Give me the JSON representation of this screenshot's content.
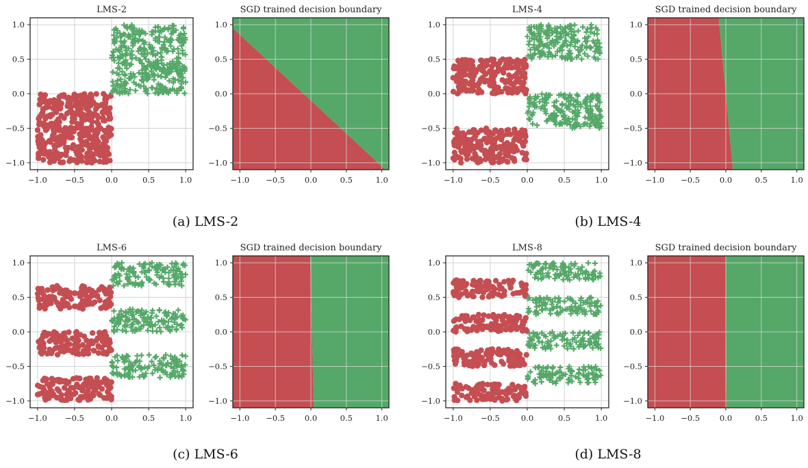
{
  "colors": {
    "class_neg": "#c44e52",
    "class_pos": "#55a868",
    "grid": "#d2d2d2"
  },
  "markers": {
    "class_neg": "filled-circle",
    "class_pos": "plus"
  },
  "chart_data": [
    {
      "id": "a",
      "caption": "(a) LMS-2",
      "panels": [
        {
          "title": "LMS-2",
          "type": "scatter",
          "xlim": [
            -1.1,
            1.1
          ],
          "ylim": [
            -1.1,
            1.1
          ],
          "grid": true,
          "x_ticks": [
            -1.0,
            -0.5,
            0.0,
            0.5,
            1.0
          ],
          "y_ticks": [
            -1.0,
            -0.5,
            0.0,
            0.5,
            1.0
          ],
          "tick_labels": [
            "−1.0",
            "−0.5",
            "0.0",
            "0.5",
            "1.0"
          ],
          "series": [
            {
              "class": "class_neg",
              "points": 400,
              "x_range": [
                -1.0,
                0.0
              ],
              "y_bands": [
                [
                  -1.0,
                  0.0
                ]
              ]
            },
            {
              "class": "class_pos",
              "points": 400,
              "x_range": [
                0.0,
                1.0
              ],
              "y_bands": [
                [
                  0.0,
                  1.0
                ]
              ]
            }
          ]
        },
        {
          "title": "SGD trained decision boundary",
          "type": "area",
          "xlim": [
            -1.1,
            1.1
          ],
          "ylim": [
            -1.1,
            1.1
          ],
          "grid": true,
          "x_ticks": [
            -1.0,
            -0.5,
            0.0,
            0.5,
            1.0
          ],
          "y_ticks": [
            -1.0,
            -0.5,
            0.0,
            0.5,
            1.0
          ],
          "tick_labels": [
            "−1.0",
            "−0.5",
            "0.0",
            "0.5",
            "1.0"
          ],
          "boundary": [
            [
              -1.1,
              0.95
            ],
            [
              1.05,
              -1.1
            ]
          ],
          "region_left": "class_neg",
          "region_right": "class_pos"
        }
      ]
    },
    {
      "id": "b",
      "caption": "(b) LMS-4",
      "panels": [
        {
          "title": "LMS-4",
          "type": "scatter",
          "xlim": [
            -1.1,
            1.1
          ],
          "ylim": [
            -1.1,
            1.1
          ],
          "grid": true,
          "x_ticks": [
            -1.0,
            -0.5,
            0.0,
            0.5,
            1.0
          ],
          "y_ticks": [
            -1.0,
            -0.5,
            0.0,
            0.5,
            1.0
          ],
          "tick_labels": [
            "−1.0",
            "−0.5",
            "0.0",
            "0.5",
            "1.0"
          ],
          "series": [
            {
              "class": "class_neg",
              "points": 400,
              "x_range": [
                -1.0,
                0.0
              ],
              "y_bands": [
                [
                  -1.0,
                  -0.5
                ],
                [
                  0.0,
                  0.5
                ]
              ]
            },
            {
              "class": "class_pos",
              "points": 400,
              "x_range": [
                0.0,
                1.0
              ],
              "y_bands": [
                [
                  -0.5,
                  0.0
                ],
                [
                  0.5,
                  1.0
                ]
              ]
            }
          ]
        },
        {
          "title": "SGD trained decision boundary",
          "type": "area",
          "xlim": [
            -1.1,
            1.1
          ],
          "ylim": [
            -1.1,
            1.1
          ],
          "grid": true,
          "x_ticks": [
            -1.0,
            -0.5,
            0.0,
            0.5,
            1.0
          ],
          "y_ticks": [
            -1.0,
            -0.5,
            0.0,
            0.5,
            1.0
          ],
          "tick_labels": [
            "−1.0",
            "−0.5",
            "0.0",
            "0.5",
            "1.0"
          ],
          "boundary": [
            [
              -0.1,
              1.1
            ],
            [
              0.1,
              -1.1
            ]
          ],
          "region_left": "class_neg",
          "region_right": "class_pos"
        }
      ]
    },
    {
      "id": "c",
      "caption": "(c) LMS-6",
      "panels": [
        {
          "title": "LMS-6",
          "type": "scatter",
          "xlim": [
            -1.1,
            1.1
          ],
          "ylim": [
            -1.1,
            1.1
          ],
          "grid": true,
          "x_ticks": [
            -1.0,
            -0.5,
            0.0,
            0.5,
            1.0
          ],
          "y_ticks": [
            -1.0,
            -0.5,
            0.0,
            0.5,
            1.0
          ],
          "tick_labels": [
            "−1.0",
            "−0.5",
            "0.0",
            "0.5",
            "1.0"
          ],
          "series": [
            {
              "class": "class_neg",
              "points": 400,
              "x_range": [
                -1.0,
                0.0
              ],
              "y_bands": [
                [
                  -1.0,
                  -0.667
                ],
                [
                  -0.333,
                  0.0
                ],
                [
                  0.333,
                  0.667
                ]
              ]
            },
            {
              "class": "class_pos",
              "points": 400,
              "x_range": [
                0.0,
                1.0
              ],
              "y_bands": [
                [
                  -0.667,
                  -0.333
                ],
                [
                  0.0,
                  0.333
                ],
                [
                  0.667,
                  1.0
                ]
              ]
            }
          ]
        },
        {
          "title": "SGD trained decision boundary",
          "type": "area",
          "xlim": [
            -1.1,
            1.1
          ],
          "ylim": [
            -1.1,
            1.1
          ],
          "grid": true,
          "x_ticks": [
            -1.0,
            -0.5,
            0.0,
            0.5,
            1.0
          ],
          "y_ticks": [
            -1.0,
            -0.5,
            0.0,
            0.5,
            1.0
          ],
          "tick_labels": [
            "−1.0",
            "−0.5",
            "0.0",
            "0.5",
            "1.0"
          ],
          "boundary": [
            [
              -0.01,
              1.1
            ],
            [
              0.04,
              -1.1
            ]
          ],
          "region_left": "class_neg",
          "region_right": "class_pos"
        }
      ]
    },
    {
      "id": "d",
      "caption": "(d) LMS-8",
      "panels": [
        {
          "title": "LMS-8",
          "type": "scatter",
          "xlim": [
            -1.1,
            1.1
          ],
          "ylim": [
            -1.1,
            1.1
          ],
          "grid": true,
          "x_ticks": [
            -1.0,
            -0.5,
            0.0,
            0.5,
            1.0
          ],
          "y_ticks": [
            -1.0,
            -0.5,
            0.0,
            0.5,
            1.0
          ],
          "tick_labels": [
            "−1.0",
            "−0.5",
            "0.0",
            "0.5",
            "1.0"
          ],
          "series": [
            {
              "class": "class_neg",
              "points": 400,
              "x_range": [
                -1.0,
                0.0
              ],
              "y_bands": [
                [
                  -1.0,
                  -0.75
                ],
                [
                  -0.5,
                  -0.25
                ],
                [
                  0.0,
                  0.25
                ],
                [
                  0.5,
                  0.75
                ]
              ]
            },
            {
              "class": "class_pos",
              "points": 400,
              "x_range": [
                0.0,
                1.0
              ],
              "y_bands": [
                [
                  -0.75,
                  -0.5
                ],
                [
                  -0.25,
                  0.0
                ],
                [
                  0.25,
                  0.5
                ],
                [
                  0.75,
                  1.0
                ]
              ]
            }
          ]
        },
        {
          "title": "SGD trained decision boundary",
          "type": "area",
          "xlim": [
            -1.1,
            1.1
          ],
          "ylim": [
            -1.1,
            1.1
          ],
          "grid": true,
          "x_ticks": [
            -1.0,
            -0.5,
            0.0,
            0.5,
            1.0
          ],
          "y_ticks": [
            -1.0,
            -0.5,
            0.0,
            0.5,
            1.0
          ],
          "tick_labels": [
            "−1.0",
            "−0.5",
            "0.0",
            "0.5",
            "1.0"
          ],
          "boundary": [
            [
              0.0,
              1.1
            ],
            [
              0.01,
              -1.1
            ]
          ],
          "region_left": "class_neg",
          "region_right": "class_pos"
        }
      ]
    }
  ]
}
